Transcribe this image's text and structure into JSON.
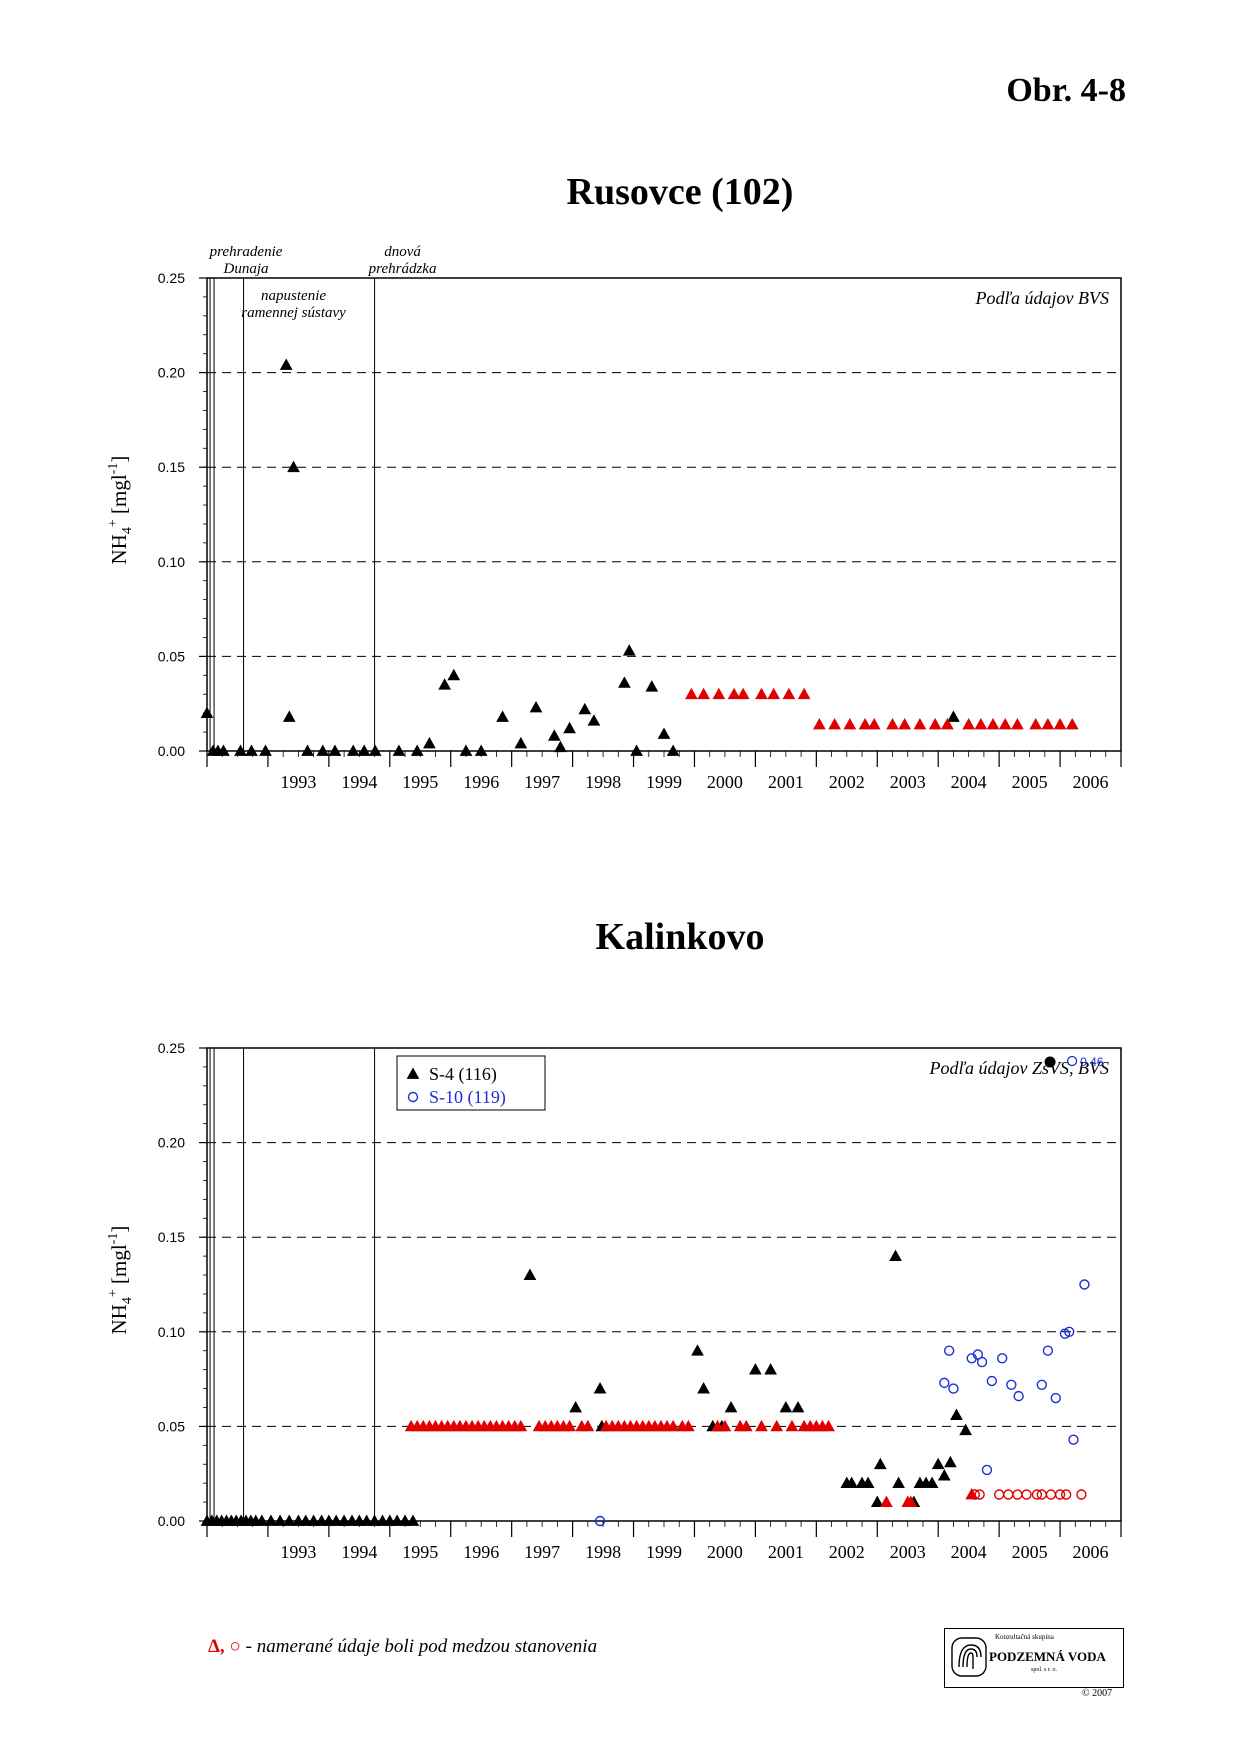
{
  "figure_number": "Obr. 4-8",
  "footnote": {
    "symbols": "Δ, ○",
    "text": " - namerané údaje boli pod medzou stanovenia"
  },
  "logo": {
    "top_line": "Konzultačná skupina",
    "name": "PODZEMNÁ VODA",
    "sub": "spol. s r. o.",
    "copyright": "© 2007"
  },
  "colors": {
    "black": "#000000",
    "red": "#e00000",
    "blue": "#1a2fd6",
    "grid": "#000000"
  },
  "chart_data": [
    {
      "type": "scatter",
      "title": "Rusovce (102)",
      "ylabel": "NH4+ [mgl-1]",
      "ylabel_parts": {
        "base": "NH",
        "sub": "4",
        "sup": "+",
        "rest": " [mgl",
        "rest_sup": "-1",
        "end": "]"
      },
      "source_note": "Podľa údajov BVS",
      "xlim": [
        1992.0,
        2007.0
      ],
      "ylim": [
        0,
        0.25
      ],
      "yticks": [
        "0.00",
        "0.05",
        "0.10",
        "0.15",
        "0.20",
        "0.25"
      ],
      "ytick_values": [
        0,
        0.05,
        0.1,
        0.15,
        0.2,
        0.25
      ],
      "year_labels": [
        "1993",
        "1994",
        "1995",
        "1996",
        "1997",
        "1998",
        "1999",
        "2000",
        "2001",
        "2002",
        "2003",
        "2004",
        "2005",
        "2006"
      ],
      "grid": "dashed horizontal",
      "events": [
        {
          "x": 1992.05,
          "label": [
            "prehradenie",
            "Dunaja"
          ],
          "position": "above"
        },
        {
          "x": 1992.6,
          "label": [
            "napustenie",
            "ramennej sústavy"
          ],
          "position": "inside"
        },
        {
          "x": 1994.75,
          "label": [
            "dnová",
            "prehrádzka"
          ],
          "position": "above"
        }
      ],
      "series": [
        {
          "name": "",
          "marker": "triangle",
          "color": "black",
          "points": [
            [
              1992.0,
              0.02
            ],
            [
              1992.1,
              0.0
            ],
            [
              1992.18,
              0.0
            ],
            [
              1992.27,
              0.0
            ],
            [
              1992.55,
              0.0
            ],
            [
              1992.73,
              0.0
            ],
            [
              1992.96,
              0.0
            ],
            [
              1993.3,
              0.204
            ],
            [
              1993.35,
              0.018
            ],
            [
              1993.42,
              0.15
            ],
            [
              1993.65,
              0.0
            ],
            [
              1993.9,
              0.0
            ],
            [
              1994.1,
              0.0
            ],
            [
              1994.4,
              0.0
            ],
            [
              1994.58,
              0.0
            ],
            [
              1994.76,
              0.0
            ],
            [
              1995.15,
              0.0
            ],
            [
              1995.45,
              0.0
            ],
            [
              1995.65,
              0.004
            ],
            [
              1995.9,
              0.035
            ],
            [
              1996.05,
              0.04
            ],
            [
              1996.25,
              0.0
            ],
            [
              1996.5,
              0.0
            ],
            [
              1996.85,
              0.018
            ],
            [
              1997.15,
              0.004
            ],
            [
              1997.4,
              0.023
            ],
            [
              1997.7,
              0.008
            ],
            [
              1997.8,
              0.002
            ],
            [
              1997.95,
              0.012
            ],
            [
              1998.2,
              0.022
            ],
            [
              1998.35,
              0.016
            ],
            [
              1998.85,
              0.036
            ],
            [
              1998.93,
              0.053
            ],
            [
              1999.05,
              0.0
            ],
            [
              1999.3,
              0.034
            ],
            [
              1999.5,
              0.009
            ],
            [
              1999.65,
              0.0
            ],
            [
              2004.25,
              0.018
            ]
          ]
        },
        {
          "name": "",
          "marker": "triangle",
          "color": "red",
          "points": [
            [
              1999.95,
              0.03
            ],
            [
              2000.15,
              0.03
            ],
            [
              2000.4,
              0.03
            ],
            [
              2000.65,
              0.03
            ],
            [
              2000.8,
              0.03
            ],
            [
              2001.1,
              0.03
            ],
            [
              2001.3,
              0.03
            ],
            [
              2001.55,
              0.03
            ],
            [
              2001.8,
              0.03
            ],
            [
              2002.05,
              0.014
            ],
            [
              2002.3,
              0.014
            ],
            [
              2002.55,
              0.014
            ],
            [
              2002.8,
              0.014
            ],
            [
              2002.95,
              0.014
            ],
            [
              2003.25,
              0.014
            ],
            [
              2003.45,
              0.014
            ],
            [
              2003.7,
              0.014
            ],
            [
              2003.95,
              0.014
            ],
            [
              2004.15,
              0.014
            ],
            [
              2004.5,
              0.014
            ],
            [
              2004.7,
              0.014
            ],
            [
              2004.9,
              0.014
            ],
            [
              2005.1,
              0.014
            ],
            [
              2005.3,
              0.014
            ],
            [
              2005.6,
              0.014
            ],
            [
              2005.8,
              0.014
            ],
            [
              2006.0,
              0.014
            ],
            [
              2006.2,
              0.014
            ]
          ]
        }
      ]
    },
    {
      "type": "scatter",
      "title": "Kalinkovo",
      "ylabel": "NH4+ [mgl-1]",
      "ylabel_parts": {
        "base": "NH",
        "sub": "4",
        "sup": "+",
        "rest": " [mgl",
        "rest_sup": "-1",
        "end": "]"
      },
      "source_note": "Podľa údajov ZsVS, BVS",
      "xlim": [
        1992.0,
        2007.0
      ],
      "ylim": [
        0,
        0.25
      ],
      "yticks": [
        "0.00",
        "0.05",
        "0.10",
        "0.15",
        "0.20",
        "0.25"
      ],
      "ytick_values": [
        0,
        0.05,
        0.1,
        0.15,
        0.2,
        0.25
      ],
      "year_labels": [
        "1993",
        "1994",
        "1995",
        "1996",
        "1997",
        "1998",
        "1999",
        "2000",
        "2001",
        "2002",
        "2003",
        "2004",
        "2005",
        "2006"
      ],
      "grid": "dashed horizontal",
      "events": [
        {
          "x": 1992.05,
          "label": [],
          "position": "none"
        },
        {
          "x": 1992.6,
          "label": [],
          "position": "none"
        },
        {
          "x": 1994.75,
          "label": [],
          "position": "none"
        }
      ],
      "legend": {
        "placement": "top-left",
        "entries": [
          {
            "label": "S-4 (116)",
            "marker": "triangle",
            "color": "black"
          },
          {
            "label": "S-10 (119)",
            "marker": "circle",
            "color": "blue"
          }
        ]
      },
      "offscale_note": {
        "value_label": "0.46",
        "x": 2006.0
      },
      "series": [
        {
          "name": "S-4 (116)",
          "marker": "triangle",
          "color": "black",
          "points": [
            [
              1992.0,
              0.0
            ],
            [
              1992.08,
              0.0
            ],
            [
              1992.16,
              0.0
            ],
            [
              1992.24,
              0.0
            ],
            [
              1992.32,
              0.0
            ],
            [
              1992.4,
              0.0
            ],
            [
              1992.48,
              0.0
            ],
            [
              1992.56,
              0.0
            ],
            [
              1992.64,
              0.0
            ],
            [
              1992.72,
              0.0
            ],
            [
              1992.8,
              0.0
            ],
            [
              1992.9,
              0.0
            ],
            [
              1993.05,
              0.0
            ],
            [
              1993.2,
              0.0
            ],
            [
              1993.35,
              0.0
            ],
            [
              1993.5,
              0.0
            ],
            [
              1993.62,
              0.0
            ],
            [
              1993.75,
              0.0
            ],
            [
              1993.88,
              0.0
            ],
            [
              1994.0,
              0.0
            ],
            [
              1994.12,
              0.0
            ],
            [
              1994.25,
              0.0
            ],
            [
              1994.38,
              0.0
            ],
            [
              1994.5,
              0.0
            ],
            [
              1994.62,
              0.0
            ],
            [
              1994.75,
              0.0
            ],
            [
              1994.88,
              0.0
            ],
            [
              1995.0,
              0.0
            ],
            [
              1995.12,
              0.0
            ],
            [
              1995.25,
              0.0
            ],
            [
              1995.38,
              0.0
            ],
            [
              1997.3,
              0.13
            ],
            [
              1998.05,
              0.06
            ],
            [
              1998.45,
              0.07
            ],
            [
              1998.48,
              0.05
            ],
            [
              2000.05,
              0.09
            ],
            [
              2000.15,
              0.07
            ],
            [
              2000.3,
              0.05
            ],
            [
              2000.45,
              0.05
            ],
            [
              2000.6,
              0.06
            ],
            [
              2001.0,
              0.08
            ],
            [
              2001.25,
              0.08
            ],
            [
              2001.5,
              0.06
            ],
            [
              2001.7,
              0.06
            ],
            [
              2002.5,
              0.02
            ],
            [
              2002.58,
              0.02
            ],
            [
              2002.75,
              0.02
            ],
            [
              2002.85,
              0.02
            ],
            [
              2003.0,
              0.01
            ],
            [
              2003.05,
              0.03
            ],
            [
              2003.3,
              0.14
            ],
            [
              2003.35,
              0.02
            ],
            [
              2003.6,
              0.01
            ],
            [
              2003.7,
              0.02
            ],
            [
              2003.8,
              0.02
            ],
            [
              2003.9,
              0.02
            ],
            [
              2004.0,
              0.03
            ],
            [
              2004.1,
              0.024
            ],
            [
              2004.2,
              0.031
            ],
            [
              2004.3,
              0.056
            ],
            [
              2004.45,
              0.048
            ]
          ]
        },
        {
          "name": "S-4 (116) below detection limit",
          "marker": "triangle",
          "color": "red",
          "points": [
            [
              1995.35,
              0.05
            ],
            [
              1995.45,
              0.05
            ],
            [
              1995.55,
              0.05
            ],
            [
              1995.65,
              0.05
            ],
            [
              1995.75,
              0.05
            ],
            [
              1995.85,
              0.05
            ],
            [
              1995.95,
              0.05
            ],
            [
              1996.05,
              0.05
            ],
            [
              1996.15,
              0.05
            ],
            [
              1996.25,
              0.05
            ],
            [
              1996.35,
              0.05
            ],
            [
              1996.45,
              0.05
            ],
            [
              1996.55,
              0.05
            ],
            [
              1996.65,
              0.05
            ],
            [
              1996.75,
              0.05
            ],
            [
              1996.85,
              0.05
            ],
            [
              1996.95,
              0.05
            ],
            [
              1997.05,
              0.05
            ],
            [
              1997.15,
              0.05
            ],
            [
              1997.45,
              0.05
            ],
            [
              1997.55,
              0.05
            ],
            [
              1997.65,
              0.05
            ],
            [
              1997.75,
              0.05
            ],
            [
              1997.85,
              0.05
            ],
            [
              1997.95,
              0.05
            ],
            [
              1998.15,
              0.05
            ],
            [
              1998.25,
              0.05
            ],
            [
              1998.55,
              0.05
            ],
            [
              1998.65,
              0.05
            ],
            [
              1998.75,
              0.05
            ],
            [
              1998.85,
              0.05
            ],
            [
              1998.95,
              0.05
            ],
            [
              1999.05,
              0.05
            ],
            [
              1999.15,
              0.05
            ],
            [
              1999.25,
              0.05
            ],
            [
              1999.35,
              0.05
            ],
            [
              1999.45,
              0.05
            ],
            [
              1999.55,
              0.05
            ],
            [
              1999.65,
              0.05
            ],
            [
              1999.8,
              0.05
            ],
            [
              1999.9,
              0.05
            ],
            [
              2000.38,
              0.05
            ],
            [
              2000.5,
              0.05
            ],
            [
              2000.75,
              0.05
            ],
            [
              2000.85,
              0.05
            ],
            [
              2001.1,
              0.05
            ],
            [
              2001.35,
              0.05
            ],
            [
              2001.6,
              0.05
            ],
            [
              2001.8,
              0.05
            ],
            [
              2001.9,
              0.05
            ],
            [
              2002.0,
              0.05
            ],
            [
              2002.1,
              0.05
            ],
            [
              2002.2,
              0.05
            ],
            [
              2003.15,
              0.01
            ],
            [
              2003.5,
              0.01
            ],
            [
              2003.55,
              0.01
            ],
            [
              2004.55,
              0.014
            ]
          ]
        },
        {
          "name": "S-10 (119)",
          "marker": "circle",
          "color": "blue",
          "points": [
            [
              1998.45,
              0.0
            ],
            [
              2004.1,
              0.073
            ],
            [
              2004.18,
              0.09
            ],
            [
              2004.25,
              0.07
            ],
            [
              2004.55,
              0.086
            ],
            [
              2004.65,
              0.088
            ],
            [
              2004.72,
              0.084
            ],
            [
              2004.8,
              0.027
            ],
            [
              2004.88,
              0.074
            ],
            [
              2005.05,
              0.086
            ],
            [
              2005.2,
              0.072
            ],
            [
              2005.32,
              0.066
            ],
            [
              2005.7,
              0.072
            ],
            [
              2005.8,
              0.09
            ],
            [
              2005.93,
              0.065
            ],
            [
              2006.08,
              0.099
            ],
            [
              2006.15,
              0.1
            ],
            [
              2006.22,
              0.043
            ],
            [
              2006.4,
              0.125
            ]
          ]
        },
        {
          "name": "S-10 (119) below detection limit",
          "marker": "circle",
          "color": "red",
          "points": [
            [
              2004.6,
              0.014
            ],
            [
              2004.68,
              0.014
            ],
            [
              2005.0,
              0.014
            ],
            [
              2005.15,
              0.014
            ],
            [
              2005.3,
              0.014
            ],
            [
              2005.45,
              0.014
            ],
            [
              2005.62,
              0.014
            ],
            [
              2005.7,
              0.014
            ],
            [
              2005.85,
              0.014
            ],
            [
              2006.0,
              0.014
            ],
            [
              2006.1,
              0.014
            ],
            [
              2006.35,
              0.014
            ]
          ]
        }
      ]
    }
  ]
}
